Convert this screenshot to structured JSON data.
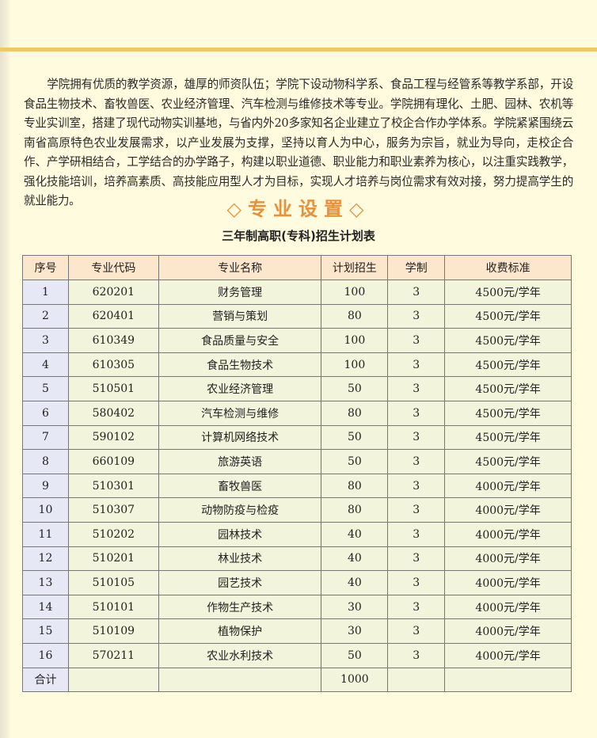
{
  "intro": "学院拥有优质的教学资源，雄厚的师资队伍；学院下设动物科学系、食品工程与经管系等教学系部，开设食品生物技术、畜牧兽医、农业经济管理、汽车检测与维修技术等专业。学院拥有理化、土肥、园林、农机等专业实训室，搭建了现代动物实训基地，与省内外20多家知名企业建立了校企合作办学体系。学院紧紧围绕云南省高原特色农业发展需求，以产业发展为支撑，坚持以育人为中心，服务为宗旨，就业为导向，走校企合作、产学研相结合，工学结合的办学路子，构建以职业道德、职业能力和职业素养为核心，以注重实践教学，强化技能培训，培养高素质、高技能应用型人才为目标，实现人才培养与岗位需求有效对接，努力提高学生的就业能力。",
  "section_title": "◇专业设置◇",
  "table_title": "三年制高职(专科)招生计划表",
  "table": {
    "headers": [
      "序号",
      "专业代码",
      "专业名称",
      "计划招生",
      "学制",
      "收费标准"
    ],
    "rows": [
      [
        "1",
        "620201",
        "财务管理",
        "100",
        "3",
        "4500元/学年"
      ],
      [
        "2",
        "620401",
        "营销与策划",
        "80",
        "3",
        "4500元/学年"
      ],
      [
        "3",
        "610349",
        "食品质量与安全",
        "100",
        "3",
        "4500元/学年"
      ],
      [
        "4",
        "610305",
        "食品生物技术",
        "100",
        "3",
        "4500元/学年"
      ],
      [
        "5",
        "510501",
        "农业经济管理",
        "50",
        "3",
        "4500元/学年"
      ],
      [
        "6",
        "580402",
        "汽车检测与维修",
        "80",
        "3",
        "4500元/学年"
      ],
      [
        "7",
        "590102",
        "计算机网络技术",
        "50",
        "3",
        "4500元/学年"
      ],
      [
        "8",
        "660109",
        "旅游英语",
        "50",
        "3",
        "4500元/学年"
      ],
      [
        "9",
        "510301",
        "畜牧兽医",
        "80",
        "3",
        "4000元/学年"
      ],
      [
        "10",
        "510307",
        "动物防疫与检疫",
        "80",
        "3",
        "4000元/学年"
      ],
      [
        "11",
        "510202",
        "园林技术",
        "40",
        "3",
        "4000元/学年"
      ],
      [
        "12",
        "510201",
        "林业技术",
        "40",
        "3",
        "4000元/学年"
      ],
      [
        "13",
        "510105",
        "园艺技术",
        "40",
        "3",
        "4000元/学年"
      ],
      [
        "14",
        "510101",
        "作物生产技术",
        "30",
        "3",
        "4000元/学年"
      ],
      [
        "15",
        "510109",
        "植物保护",
        "30",
        "3",
        "4000元/学年"
      ],
      [
        "16",
        "570211",
        "农业水利技术",
        "50",
        "3",
        "4000元/学年"
      ],
      [
        "合计",
        "",
        "",
        "1000",
        "",
        ""
      ]
    ]
  },
  "colors": {
    "background": "#fefbdf",
    "rule": "#f2c66a",
    "title": "#e8913a",
    "header_bg": "#fde7cc",
    "index_bg": "#e7e8f5",
    "cell_bg": "#f2f4dc"
  }
}
